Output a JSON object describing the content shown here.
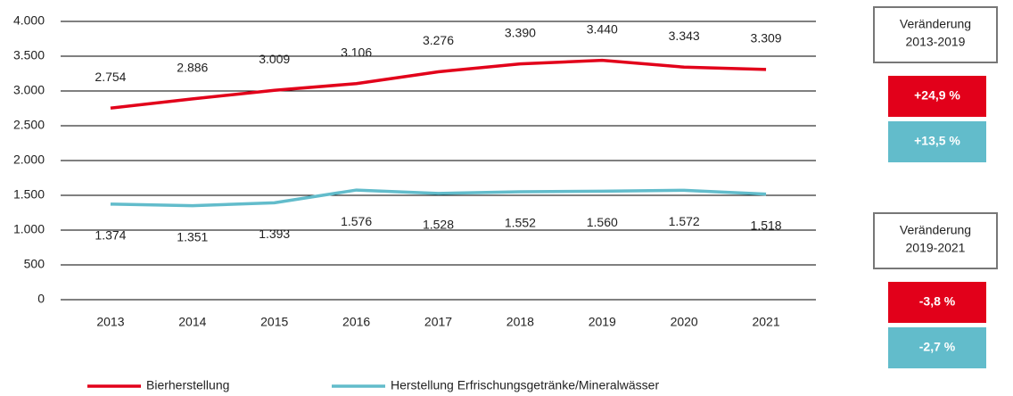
{
  "chart_data": {
    "type": "line",
    "categories": [
      "2013",
      "2014",
      "2015",
      "2016",
      "2017",
      "2018",
      "2019",
      "2020",
      "2021"
    ],
    "series": [
      {
        "name": "Bierherstellung",
        "color": "#e2001a",
        "values": [
          2754,
          2886,
          3009,
          3106,
          3276,
          3390,
          3440,
          3343,
          3309
        ],
        "value_labels": [
          "2.754",
          "2.886",
          "3.009",
          "3.106",
          "3.276",
          "3.390",
          "3.440",
          "3.343",
          "3.309"
        ]
      },
      {
        "name": "Herstellung Erfrischungsgetränke/Mineralwässer",
        "color": "#62bccb",
        "values": [
          1374,
          1351,
          1393,
          1576,
          1528,
          1552,
          1560,
          1572,
          1518
        ],
        "value_labels": [
          "1.374",
          "1.351",
          "1.393",
          "1.576",
          "1.528",
          "1.552",
          "1.560",
          "1.572",
          "1.518"
        ]
      }
    ],
    "ylim": [
      0,
      4000
    ],
    "yticks": [
      0,
      500,
      {
        "value": 1000,
        "label": "1.000"
      },
      {
        "value": 1500,
        "label": "1.500"
      },
      {
        "value": 2000,
        "label": "2.000"
      },
      {
        "value": 2500,
        "label": "2.500"
      },
      {
        "value": 3000,
        "label": "3.000"
      },
      {
        "value": 3500,
        "label": "3.500"
      },
      {
        "value": 4000,
        "label": "4.000"
      }
    ],
    "grid": true,
    "legend": "bottom",
    "annotations": [
      {
        "title_lines": [
          "Veränderung",
          "2013-2019"
        ],
        "items": [
          {
            "text": "+24,9 %",
            "color": "#e2001a"
          },
          {
            "text": "+13,5 %",
            "color": "#62bccb"
          }
        ]
      },
      {
        "title_lines": [
          "Veränderung",
          "2019-2021"
        ],
        "items": [
          {
            "text": "-3,8 %",
            "color": "#e2001a"
          },
          {
            "text": "-2,7 %",
            "color": "#62bccb"
          }
        ]
      }
    ]
  }
}
